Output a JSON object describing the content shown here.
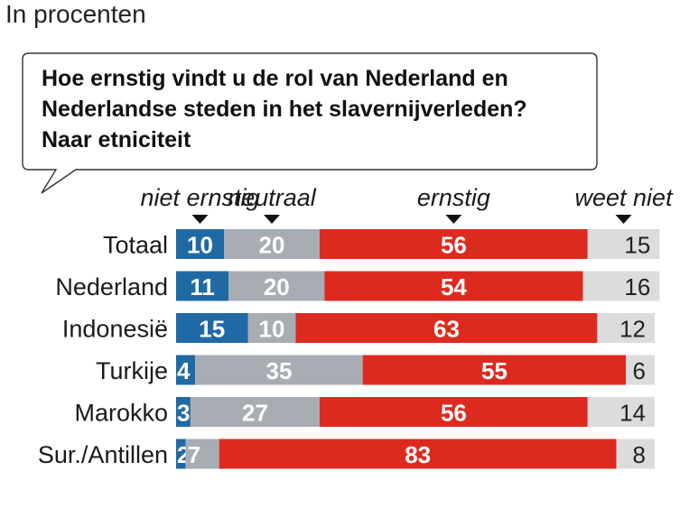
{
  "subtitle": "In procenten",
  "question_lines": [
    "Hoe ernstig vindt u de rol van Nederland en",
    "Nederlandse steden in het slavernijverleden?",
    "Naar etniciteit"
  ],
  "colors": {
    "niet_ernstig": "#1f6aa5",
    "neutraal": "#a7adb3",
    "ernstig": "#dd2a1f",
    "weet_niet": "#dcdcdc",
    "label_on_dark": "#ffffff",
    "label_on_light": "#222222"
  },
  "chart_data": {
    "type": "bar",
    "orientation": "horizontal",
    "stacked": true,
    "unit": "procent",
    "categories": [
      "Totaal",
      "Nederland",
      "Indonesië",
      "Turkije",
      "Marokko",
      "Sur./Antillen"
    ],
    "series": [
      {
        "name": "niet ernstig",
        "values": [
          10,
          11,
          15,
          4,
          3,
          2
        ]
      },
      {
        "name": "neutraal",
        "values": [
          20,
          20,
          10,
          35,
          27,
          7
        ]
      },
      {
        "name": "ernstig",
        "values": [
          56,
          54,
          63,
          55,
          56,
          83
        ]
      },
      {
        "name": "weet niet",
        "values": [
          15,
          16,
          12,
          6,
          14,
          8
        ]
      }
    ],
    "legend": "top, above columns with down-pointing markers",
    "grid": false
  }
}
